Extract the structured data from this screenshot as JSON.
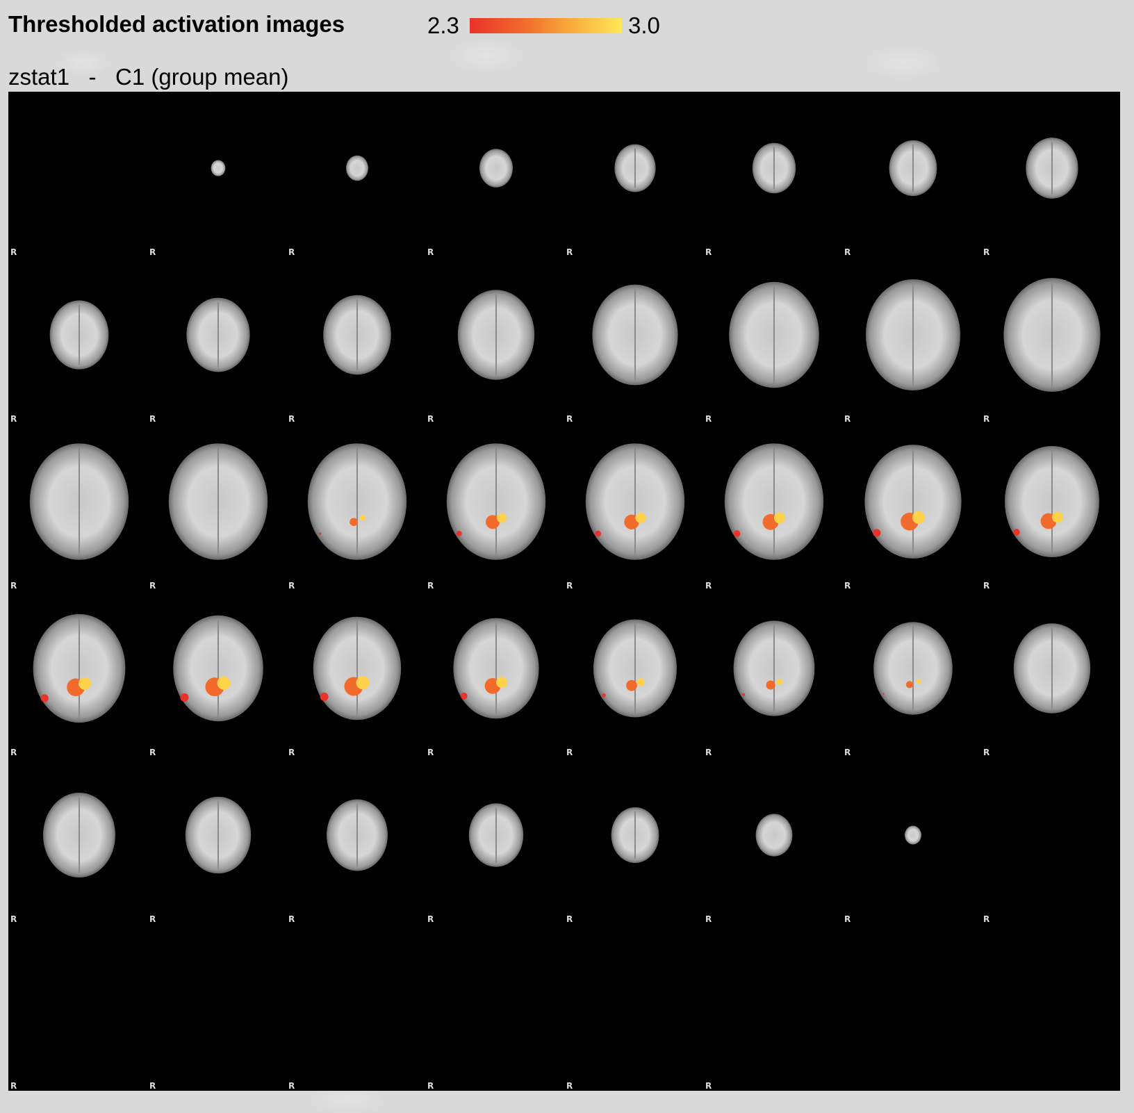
{
  "header": {
    "title": "Thresholded activation images",
    "scale_min": "2.3",
    "scale_max": "3.0",
    "subtitle": "zstat1   -   C1 (group mean)"
  },
  "colorbar": {
    "colors": [
      "#e8322a",
      "#f26a2c",
      "#f8a83a",
      "#ffe85a"
    ]
  },
  "grid": {
    "rows": 6,
    "cols": 8,
    "orientation_label": "R",
    "labeled_cells": 46,
    "slices": [
      {
        "brain": 0
      },
      {
        "brain": 0.08
      },
      {
        "brain": 0.15
      },
      {
        "brain": 0.25
      },
      {
        "brain": 0.32
      },
      {
        "brain": 0.34
      },
      {
        "brain": 0.38
      },
      {
        "brain": 0.42
      },
      {
        "brain": 0.48
      },
      {
        "brain": 0.52
      },
      {
        "brain": 0.56
      },
      {
        "brain": 0.64
      },
      {
        "brain": 0.72
      },
      {
        "brain": 0.76
      },
      {
        "brain": 0.8
      },
      {
        "brain": 0.82
      },
      {
        "brain": 0.84,
        "act": 0
      },
      {
        "brain": 0.84,
        "act": 0
      },
      {
        "brain": 0.84,
        "act": 0.2
      },
      {
        "brain": 0.84,
        "act": 0.5
      },
      {
        "brain": 0.84,
        "act": 0.55
      },
      {
        "brain": 0.84,
        "act": 0.6
      },
      {
        "brain": 0.82,
        "act": 0.7
      },
      {
        "brain": 0.8,
        "act": 0.6
      },
      {
        "brain": 0.78,
        "act": 0.7
      },
      {
        "brain": 0.76,
        "act": 0.75
      },
      {
        "brain": 0.74,
        "act": 0.75
      },
      {
        "brain": 0.72,
        "act": 0.6
      },
      {
        "brain": 0.7,
        "act": 0.35
      },
      {
        "brain": 0.68,
        "act": 0.25
      },
      {
        "brain": 0.66,
        "act": 0.15
      },
      {
        "brain": 0.64,
        "act": 0
      },
      {
        "brain": 0.6
      },
      {
        "brain": 0.54
      },
      {
        "brain": 0.5
      },
      {
        "brain": 0.44
      },
      {
        "brain": 0.38
      },
      {
        "brain": 0.28
      },
      {
        "brain": 0.1
      },
      {
        "brain": 0
      },
      {
        "brain": 0
      },
      {
        "brain": 0
      },
      {
        "brain": 0
      },
      {
        "brain": 0
      },
      {
        "brain": 0
      },
      {
        "brain": 0
      },
      {
        "brain": 0
      },
      {
        "brain": 0
      }
    ]
  }
}
